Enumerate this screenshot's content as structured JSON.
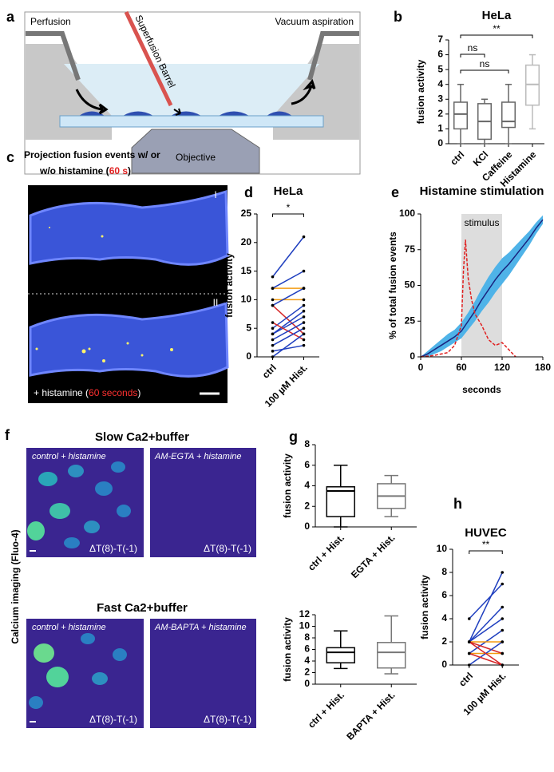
{
  "panel_labels": [
    "a",
    "b",
    "c",
    "d",
    "e",
    "f",
    "g",
    "h"
  ],
  "diagram": {
    "perfusion": "Perfusion",
    "vacuum": "Vacuum aspiration",
    "barrel": "Superfusion Barrel",
    "objective": "Objective"
  },
  "projection": {
    "title_line1": "Projection fusion events w/ or",
    "title_line2": "w/o histamine (",
    "title_time": "60 s",
    "title_end": ")",
    "roman": [
      "I",
      "II"
    ],
    "caption": "+ histamine (",
    "caption_time": "60 seconds",
    "caption_end": ")"
  },
  "calcium": {
    "side": "Calcium imaging (Fluo-4)",
    "title_slow": "Slow Ca2+buffer",
    "title_fast": "Fast Ca2+buffer",
    "images": [
      {
        "label": "control + histamine",
        "delta": "ΔT(8)-T(-1)"
      },
      {
        "label": "AM-EGTA + histamine",
        "delta": "ΔT(8)-T(-1)"
      },
      {
        "label": "control + histamine",
        "delta": "ΔT(8)-T(-1)"
      },
      {
        "label": "AM-BAPTA + histamine",
        "delta": "ΔT(8)-T(-1)"
      }
    ]
  },
  "chart_data": [
    {
      "type": "box",
      "title": "HeLa",
      "ylabel": "fusion activity",
      "categories": [
        "ctrl",
        "KCl",
        "Caffeine",
        "Histamine"
      ],
      "boxes": [
        {
          "min": 0,
          "q1": 1,
          "median": 2,
          "q3": 2.8,
          "max": 4
        },
        {
          "min": 0,
          "q1": 0.3,
          "median": 1.5,
          "q3": 2.7,
          "max": 3
        },
        {
          "min": 0,
          "q1": 1.1,
          "median": 1.5,
          "q3": 2.8,
          "max": 4
        },
        {
          "min": 1,
          "q1": 2.6,
          "median": 4,
          "q3": 5.3,
          "max": 6
        }
      ],
      "colors": [
        "#666666",
        "#666666",
        "#666666",
        "#bbbbbb"
      ],
      "ylim": [
        0,
        7
      ],
      "yticks": [
        0,
        1,
        2,
        3,
        4,
        5,
        6,
        7
      ],
      "annotations": [
        {
          "text": "**",
          "from": 0,
          "to": 3
        },
        {
          "text": "ns",
          "from": 0,
          "to": 1
        },
        {
          "text": "ns",
          "from": 0,
          "to": 2
        }
      ]
    },
    {
      "type": "line",
      "title": "HeLa",
      "ylabel": "fusion activity",
      "categories": [
        "ctrl",
        "100 µM Hist."
      ],
      "ylim": [
        0,
        25
      ],
      "yticks": [
        0,
        5,
        10,
        15,
        20,
        25
      ],
      "series": [
        {
          "color": "#1f3fbf",
          "values": [
            14,
            21
          ]
        },
        {
          "color": "#f39c12",
          "values": [
            12,
            12
          ]
        },
        {
          "color": "#1f3fbf",
          "values": [
            12,
            15
          ]
        },
        {
          "color": "#f39c12",
          "values": [
            10,
            10
          ]
        },
        {
          "color": "#d62728",
          "values": [
            9,
            4
          ]
        },
        {
          "color": "#1f3fbf",
          "values": [
            9,
            12
          ]
        },
        {
          "color": "#1f3fbf",
          "values": [
            5,
            9
          ]
        },
        {
          "color": "#1f3fbf",
          "values": [
            4,
            8
          ]
        },
        {
          "color": "#1f3fbf",
          "values": [
            4,
            7
          ]
        },
        {
          "color": "#d62728",
          "values": [
            6,
            3
          ]
        },
        {
          "color": "#1f3fbf",
          "values": [
            3,
            6
          ]
        },
        {
          "color": "#1f3fbf",
          "values": [
            2,
            5
          ]
        },
        {
          "color": "#1f3fbf",
          "values": [
            1,
            2
          ]
        },
        {
          "color": "#1f3fbf",
          "values": [
            0,
            4
          ]
        }
      ],
      "annotations": [
        {
          "text": "*",
          "from": 0,
          "to": 1
        }
      ]
    },
    {
      "type": "line",
      "title": "Histamine stimulation",
      "ylabel": "% of total fusion events",
      "xlabel": "seconds",
      "xlim": [
        0,
        180
      ],
      "xticks": [
        0,
        60,
        120,
        180
      ],
      "ylim": [
        0,
        100
      ],
      "yticks": [
        0,
        25,
        50,
        75,
        100
      ],
      "highlight": {
        "from": 60,
        "to": 120,
        "label": "stimulus",
        "color": "#dddddd"
      },
      "series": [
        {
          "color": "#1a237e",
          "band_color": "#4fb3e8",
          "x": [
            0,
            10,
            20,
            30,
            40,
            50,
            60,
            70,
            80,
            90,
            100,
            110,
            120,
            130,
            140,
            150,
            160,
            170,
            180
          ],
          "values": [
            0,
            2,
            5,
            8,
            11,
            14,
            18,
            25,
            32,
            40,
            47,
            54,
            60,
            65,
            71,
            77,
            83,
            90,
            96
          ],
          "lower": [
            0,
            0,
            2,
            4,
            7,
            10,
            13,
            19,
            25,
            32,
            38,
            45,
            51,
            57,
            64,
            71,
            78,
            86,
            93
          ],
          "upper": [
            0,
            4,
            8,
            12,
            16,
            19,
            24,
            31,
            39,
            48,
            56,
            63,
            69,
            73,
            78,
            83,
            88,
            94,
            99
          ]
        },
        {
          "color": "#e02020",
          "dashed": true,
          "x": [
            0,
            20,
            40,
            50,
            55,
            60,
            63,
            66,
            70,
            75,
            80,
            90,
            100,
            110,
            120,
            130,
            140
          ],
          "values": [
            0,
            1,
            3,
            8,
            15,
            22,
            60,
            82,
            55,
            40,
            30,
            22,
            12,
            8,
            10,
            5,
            0
          ]
        }
      ]
    },
    {
      "type": "box",
      "ylabel": "fusion activity",
      "categories": [
        "ctrl + Hist.",
        "EGTA + Hist."
      ],
      "boxes": [
        {
          "min": 0,
          "q1": 1,
          "median": 3.5,
          "q3": 3.9,
          "max": 6
        },
        {
          "min": 1,
          "q1": 1.8,
          "median": 3,
          "q3": 4.2,
          "max": 5
        }
      ],
      "colors": [
        "#000000",
        "#777777"
      ],
      "ylim": [
        0,
        8
      ],
      "yticks": [
        0,
        2,
        4,
        6,
        8
      ]
    },
    {
      "type": "box",
      "ylabel": "fusion activity",
      "categories": [
        "ctrl + Hist.",
        "BAPTA + Hist."
      ],
      "boxes": [
        {
          "min": 2.7,
          "q1": 3.7,
          "median": 5.5,
          "q3": 6.3,
          "max": 9.2
        },
        {
          "min": 1.8,
          "q1": 2.8,
          "median": 5.5,
          "q3": 7.2,
          "max": 11.8
        }
      ],
      "colors": [
        "#000000",
        "#777777"
      ],
      "ylim": [
        0,
        12
      ],
      "yticks": [
        0,
        2,
        4,
        6,
        8,
        10,
        12
      ]
    },
    {
      "type": "line",
      "title": "HUVEC",
      "ylabel": "fusion activity",
      "categories": [
        "ctrl",
        "100 µM Hist."
      ],
      "ylim": [
        0,
        10
      ],
      "yticks": [
        0,
        2,
        4,
        6,
        8,
        10
      ],
      "series": [
        {
          "color": "#1f3fbf",
          "values": [
            4,
            7
          ]
        },
        {
          "color": "#1f3fbf",
          "values": [
            2,
            8
          ]
        },
        {
          "color": "#1f3fbf",
          "values": [
            2,
            5
          ]
        },
        {
          "color": "#1f3fbf",
          "values": [
            2,
            4
          ]
        },
        {
          "color": "#1f3fbf",
          "values": [
            1,
            3
          ]
        },
        {
          "color": "#f39c12",
          "values": [
            2,
            2
          ]
        },
        {
          "color": "#f39c12",
          "values": [
            1,
            1
          ]
        },
        {
          "color": "#d62728",
          "values": [
            2,
            1
          ]
        },
        {
          "color": "#1f3fbf",
          "values": [
            0,
            2
          ]
        },
        {
          "color": "#d62728",
          "values": [
            1,
            0
          ]
        },
        {
          "color": "#d62728",
          "values": [
            2,
            0
          ]
        }
      ],
      "annotations": [
        {
          "text": "**",
          "from": 0,
          "to": 1
        }
      ]
    }
  ]
}
